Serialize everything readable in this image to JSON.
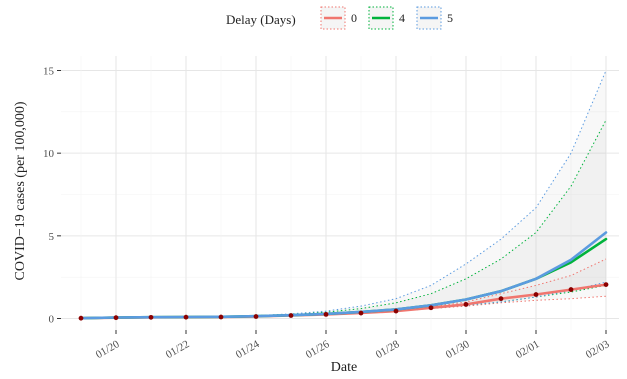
{
  "chart_data": {
    "type": "line",
    "title": "",
    "xlabel": "Date",
    "ylabel": "COVID−19 cases (per 100,000)",
    "x_ticks": [
      {
        "day": 2,
        "label": "01/20"
      },
      {
        "day": 4,
        "label": "01/22"
      },
      {
        "day": 6,
        "label": "01/24"
      },
      {
        "day": 8,
        "label": "01/26"
      },
      {
        "day": 10,
        "label": "01/28"
      },
      {
        "day": 12,
        "label": "01/30"
      },
      {
        "day": 14,
        "label": "02/01"
      },
      {
        "day": 16,
        "label": "02/03"
      }
    ],
    "xlim": [
      1,
      16
    ],
    "ylim": [
      0,
      15
    ],
    "y_ticks": [
      0,
      5,
      10,
      15
    ],
    "grid": true,
    "legend": {
      "title": "Delay (Days)",
      "placement": "top",
      "entries": [
        "0",
        "4",
        "5"
      ]
    },
    "observed": {
      "x": [
        1,
        2,
        3,
        4,
        5,
        6,
        7,
        8,
        9,
        10,
        11,
        12,
        13,
        14,
        15,
        16
      ],
      "y": [
        0.02,
        0.05,
        0.07,
        0.08,
        0.09,
        0.12,
        0.18,
        0.25,
        0.33,
        0.45,
        0.65,
        0.85,
        1.2,
        1.45,
        1.75,
        2.05
      ]
    },
    "series": [
      {
        "name": "0",
        "color": "#F0766F",
        "x": [
          1,
          2,
          3,
          4,
          5,
          6,
          7,
          8,
          9,
          10,
          11,
          12,
          13,
          14,
          15,
          16
        ],
        "y": [
          0.02,
          0.05,
          0.07,
          0.08,
          0.09,
          0.12,
          0.18,
          0.25,
          0.33,
          0.45,
          0.65,
          0.85,
          1.2,
          1.45,
          1.75,
          2.05
        ],
        "lower": [
          0.02,
          0.05,
          0.07,
          0.08,
          0.09,
          0.12,
          0.18,
          0.25,
          0.33,
          0.45,
          0.6,
          0.75,
          0.95,
          1.1,
          1.2,
          1.35
        ],
        "upper": [
          0.02,
          0.05,
          0.07,
          0.08,
          0.09,
          0.12,
          0.18,
          0.25,
          0.33,
          0.45,
          0.7,
          1.0,
          1.5,
          2.0,
          2.6,
          3.6
        ]
      },
      {
        "name": "4",
        "color": "#00B33C",
        "x": [
          1,
          2,
          3,
          4,
          5,
          6,
          7,
          8,
          9,
          10,
          11,
          12,
          13,
          14,
          15,
          16
        ],
        "y": [
          0.02,
          0.06,
          0.08,
          0.09,
          0.1,
          0.14,
          0.2,
          0.28,
          0.4,
          0.55,
          0.8,
          1.15,
          1.65,
          2.4,
          3.4,
          4.8
        ],
        "lower": [
          0.02,
          0.05,
          0.07,
          0.08,
          0.09,
          0.12,
          0.18,
          0.25,
          0.33,
          0.45,
          0.6,
          0.8,
          1.0,
          1.3,
          1.6,
          2.0
        ],
        "upper": [
          0.02,
          0.06,
          0.08,
          0.1,
          0.12,
          0.16,
          0.25,
          0.38,
          0.6,
          0.95,
          1.5,
          2.4,
          3.6,
          5.2,
          8.0,
          12.0
        ]
      },
      {
        "name": "5",
        "color": "#5B9BE0",
        "x": [
          1,
          2,
          3,
          4,
          5,
          6,
          7,
          8,
          9,
          10,
          11,
          12,
          13,
          14,
          15,
          16
        ],
        "y": [
          0.02,
          0.06,
          0.08,
          0.09,
          0.1,
          0.14,
          0.2,
          0.28,
          0.4,
          0.55,
          0.8,
          1.15,
          1.65,
          2.4,
          3.55,
          5.2
        ],
        "lower": [
          0.02,
          0.05,
          0.07,
          0.08,
          0.09,
          0.12,
          0.18,
          0.25,
          0.33,
          0.45,
          0.6,
          0.8,
          1.0,
          1.3,
          1.7,
          2.2
        ],
        "upper": [
          0.02,
          0.06,
          0.08,
          0.1,
          0.13,
          0.18,
          0.28,
          0.45,
          0.75,
          1.2,
          2.0,
          3.3,
          4.8,
          6.7,
          10.0,
          15.0
        ]
      }
    ]
  }
}
